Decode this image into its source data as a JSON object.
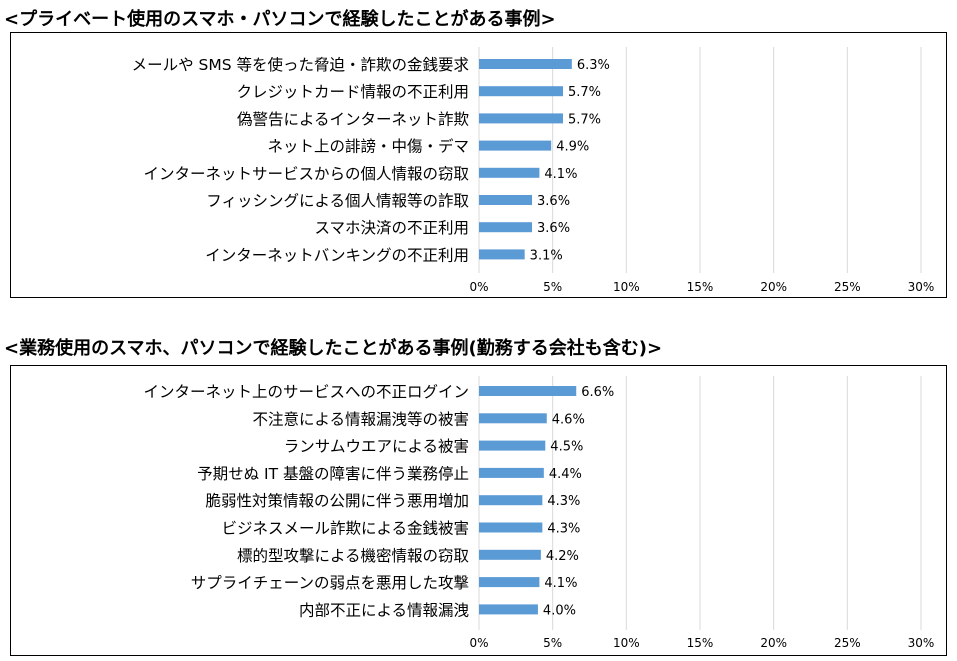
{
  "chart_data": [
    {
      "type": "bar",
      "orientation": "horizontal",
      "title": "<プライベート使用のスマホ・パソコンで経験したことがある事例>",
      "categories": [
        "メールや SMS 等を使った脅迫・詐欺の金銭要求",
        "クレジットカード情報の不正利用",
        "偽警告によるインターネット詐欺",
        "ネット上の誹謗・中傷・デマ",
        "インターネットサービスからの個人情報の窃取",
        "フィッシングによる個人情報等の詐取",
        "スマホ決済の不正利用",
        "インターネットバンキングの不正利用"
      ],
      "values": [
        6.3,
        5.7,
        5.7,
        4.9,
        4.1,
        3.6,
        3.6,
        3.1
      ],
      "value_labels": [
        "6.3%",
        "5.7%",
        "5.7%",
        "4.9%",
        "4.1%",
        "3.6%",
        "3.6%",
        "3.1%"
      ],
      "xlim": [
        0,
        30
      ],
      "x_ticks": [
        0,
        5,
        10,
        15,
        20,
        25,
        30
      ],
      "x_tick_labels": [
        "0%",
        "5%",
        "10%",
        "15%",
        "20%",
        "25%",
        "30%"
      ],
      "grid": true,
      "bar_color": "#5b9bd5"
    },
    {
      "type": "bar",
      "orientation": "horizontal",
      "title": "<業務使用のスマホ、パソコンで経験したことがある事例(勤務する会社も含む)>",
      "categories": [
        "インターネット上のサービスへの不正ログイン",
        "不注意による情報漏洩等の被害",
        "ランサムウエアによる被害",
        "予期せぬ IT 基盤の障害に伴う業務停止",
        "脆弱性対策情報の公開に伴う悪用増加",
        "ビジネスメール詐欺による金銭被害",
        "標的型攻撃による機密情報の窃取",
        "サプライチェーンの弱点を悪用した攻撃",
        "内部不正による情報漏洩"
      ],
      "values": [
        6.6,
        4.6,
        4.5,
        4.4,
        4.3,
        4.3,
        4.2,
        4.1,
        4.0
      ],
      "value_labels": [
        "6.6%",
        "4.6%",
        "4.5%",
        "4.4%",
        "4.3%",
        "4.3%",
        "4.2%",
        "4.1%",
        "4.0%"
      ],
      "xlim": [
        0,
        30
      ],
      "x_ticks": [
        0,
        5,
        10,
        15,
        20,
        25,
        30
      ],
      "x_tick_labels": [
        "0%",
        "5%",
        "10%",
        "15%",
        "20%",
        "25%",
        "30%"
      ],
      "grid": true,
      "bar_color": "#5b9bd5"
    }
  ]
}
